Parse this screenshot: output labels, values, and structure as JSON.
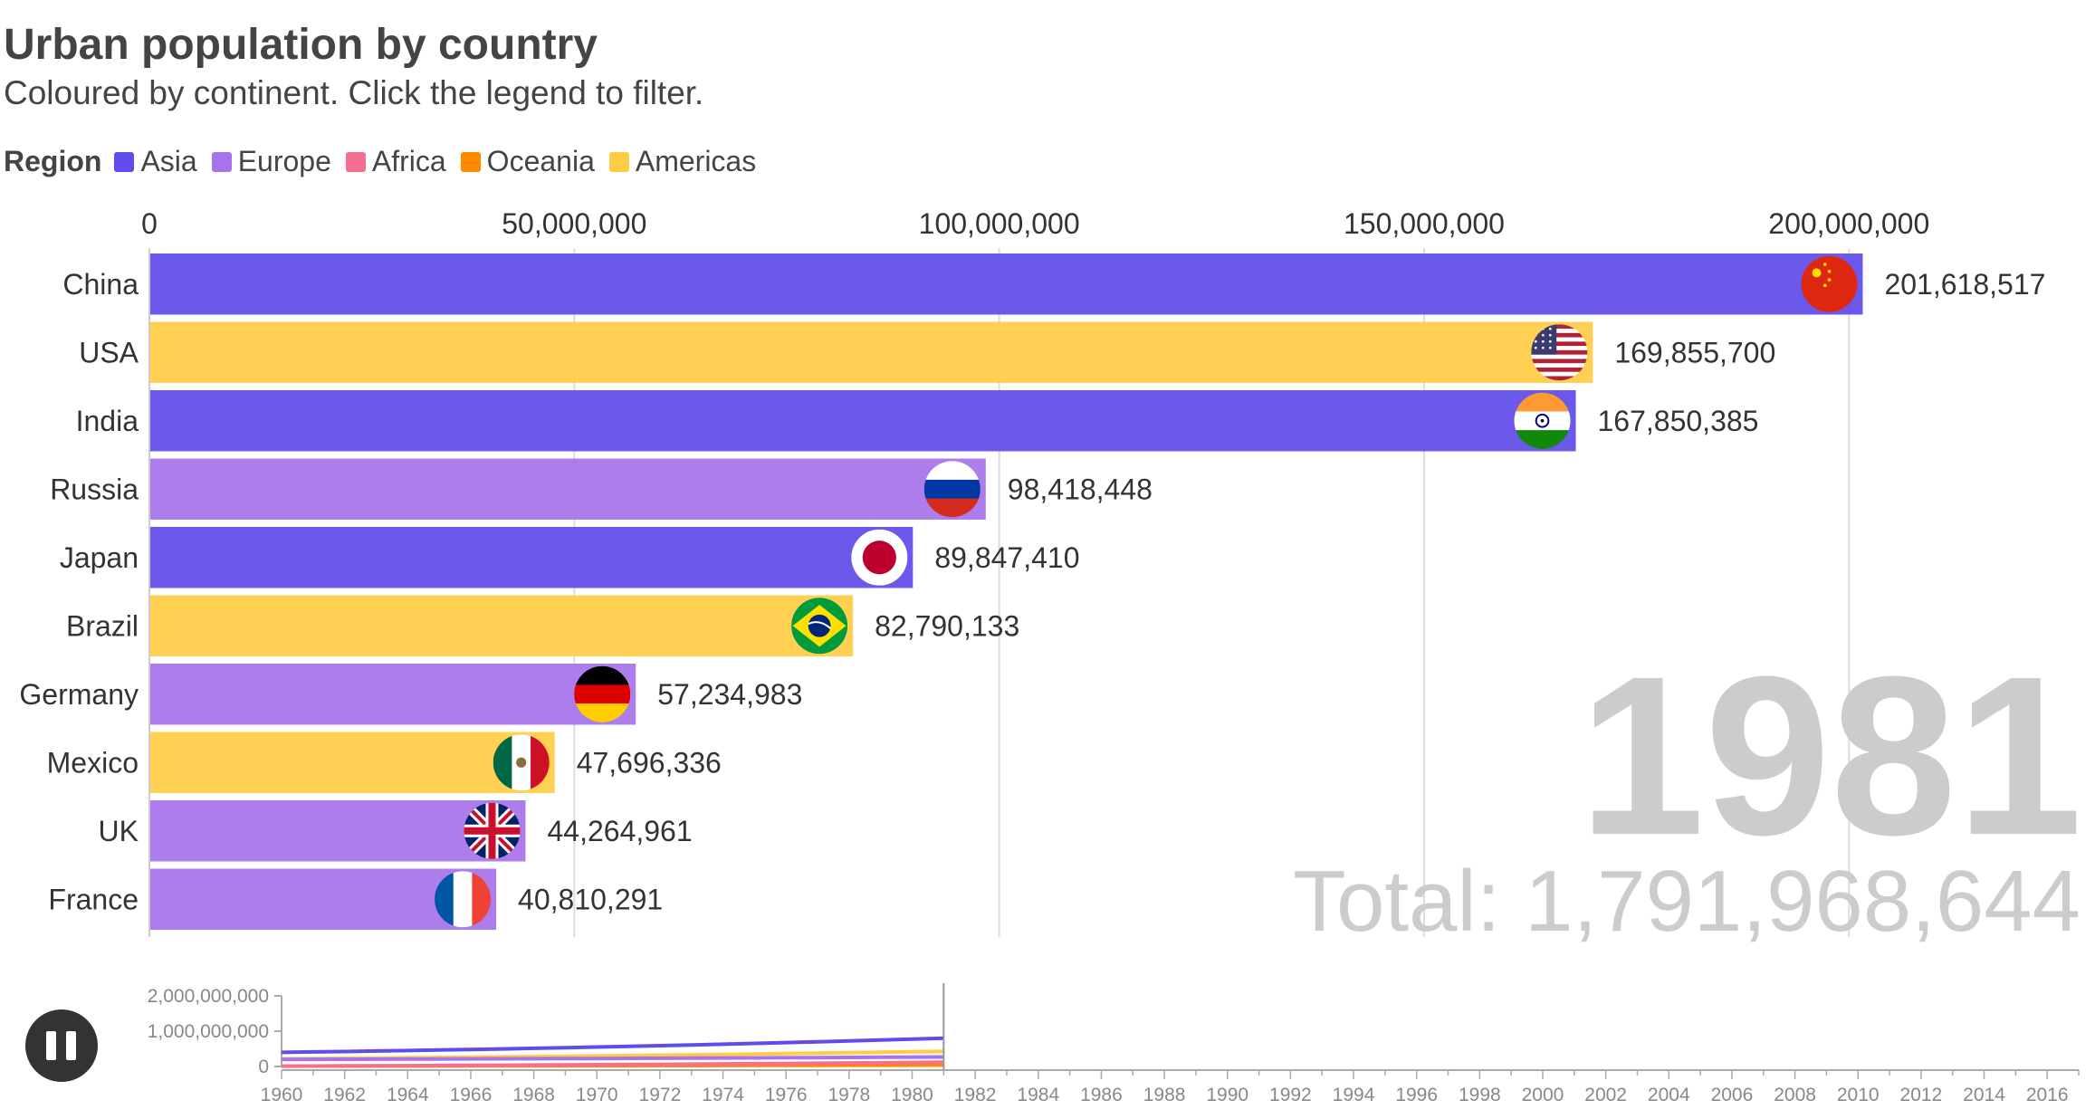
{
  "header": {
    "title": "Urban population by country",
    "subtitle": "Coloured by continent. Click the legend to filter."
  },
  "legend": {
    "title": "Region",
    "items": [
      {
        "label": "Asia",
        "color": "#5f4cea"
      },
      {
        "label": "Europe",
        "color": "#a773ea"
      },
      {
        "label": "Africa",
        "color": "#f76f8e"
      },
      {
        "label": "Oceania",
        "color": "#ff8a00"
      },
      {
        "label": "Americas",
        "color": "#ffcc44"
      }
    ]
  },
  "display": {
    "year": "1981",
    "total": "Total: 1,791,968,644"
  },
  "chart_data": {
    "type": "bar",
    "orientation": "horizontal",
    "categories": [
      "China",
      "USA",
      "India",
      "Russia",
      "Japan",
      "Brazil",
      "Germany",
      "Mexico",
      "UK",
      "France"
    ],
    "values": [
      201618517,
      169855700,
      167850385,
      98418448,
      89847410,
      82790133,
      57234983,
      47696336,
      44264961,
      40810291
    ],
    "value_labels": [
      "201,618,517",
      "169,855,700",
      "167,850,385",
      "98,418,448",
      "89,847,410",
      "82,790,133",
      "57,234,983",
      "47,696,336",
      "44,264,961",
      "40,810,291"
    ],
    "regions": [
      "Asia",
      "Americas",
      "Asia",
      "Europe",
      "Asia",
      "Americas",
      "Europe",
      "Americas",
      "Europe",
      "Europe"
    ],
    "flags": [
      "china-flag-icon",
      "usa-flag-icon",
      "india-flag-icon",
      "russia-flag-icon",
      "japan-flag-icon",
      "brazil-flag-icon",
      "germany-flag-icon",
      "mexico-flag-icon",
      "uk-flag-icon",
      "france-flag-icon"
    ],
    "xlim": [
      0,
      220000000
    ],
    "x_ticks": [
      0,
      50000000,
      100000000,
      150000000,
      200000000
    ],
    "x_tick_labels": [
      "0",
      "50,000,000",
      "100,000,000",
      "150,000,000",
      "200,000,000"
    ],
    "grid": true,
    "legend_position": "top-left"
  },
  "timeline": {
    "pause_icon": "pause-icon",
    "y_tick_labels": [
      "2,000,000,000",
      "1,000,000,000",
      "0"
    ],
    "y_ticks": [
      2000000000,
      1000000000,
      0
    ],
    "x_labels": [
      "1960",
      "1962",
      "1964",
      "1966",
      "1968",
      "1970",
      "1972",
      "1974",
      "1976",
      "1978",
      "1980",
      "1982",
      "1984",
      "1986",
      "1988",
      "1990",
      "1992",
      "1994",
      "1996",
      "1998",
      "2000",
      "2002",
      "2004",
      "2006",
      "2008",
      "2010",
      "2012",
      "2014",
      "2016"
    ],
    "year_range": [
      1960,
      2017
    ],
    "current_year": 1981,
    "series": [
      {
        "region": "Asia",
        "color": "#5f4cea",
        "start": 400000000,
        "end": 800000000
      },
      {
        "region": "Americas",
        "color": "#ffcc44",
        "start": 220000000,
        "end": 430000000
      },
      {
        "region": "Europe",
        "color": "#a773ea",
        "start": 200000000,
        "end": 270000000
      },
      {
        "region": "Oceania",
        "color": "#ff8a00",
        "start": 12000000,
        "end": 40000000
      },
      {
        "region": "Africa",
        "color": "#f76f8e",
        "start": 10000000,
        "end": 120000000
      }
    ]
  }
}
